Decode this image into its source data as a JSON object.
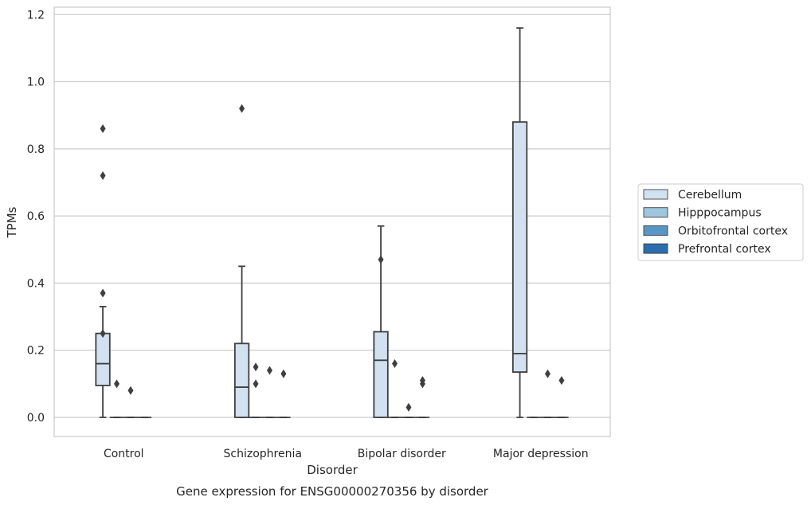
{
  "chart_data": {
    "type": "box",
    "title": "Gene expression for ENSG00000270356 by disorder",
    "xlabel": "Disorder",
    "ylabel": "TPMs",
    "ylim": [
      -0.057,
      1.222
    ],
    "yticks": [
      0.0,
      0.2,
      0.4,
      0.6,
      0.8,
      1.0,
      1.2
    ],
    "ytick_labels": [
      "0.0",
      "0.2",
      "0.4",
      "0.6",
      "0.8",
      "1.0",
      "1.2"
    ],
    "grid": "horizontal",
    "legend_position": "right",
    "categories": [
      "Control",
      "Schizophrenia",
      "Bipolar disorder",
      "Major depression"
    ],
    "series": [
      {
        "name": "Cerebellum",
        "color": "#d1e1f0",
        "boxes": [
          {
            "q1": 0.095,
            "median": 0.16,
            "q3": 0.25,
            "whislo": 0.0,
            "whishi": 0.33,
            "fliers": [
              0.86,
              0.72,
              0.37,
              0.25
            ]
          },
          {
            "q1": 0.0,
            "median": 0.09,
            "q3": 0.22,
            "whislo": 0.0,
            "whishi": 0.45,
            "fliers": [
              0.92
            ]
          },
          {
            "q1": 0.0,
            "median": 0.17,
            "q3": 0.255,
            "whislo": 0.0,
            "whishi": 0.57,
            "fliers": [
              0.47
            ]
          },
          {
            "q1": 0.135,
            "median": 0.19,
            "q3": 0.88,
            "whislo": 0.0,
            "whishi": 1.16,
            "fliers": []
          }
        ]
      },
      {
        "name": "Hipppocampus",
        "color": "#9ec6de",
        "boxes": [
          {
            "q1": 0.0,
            "median": 0.0,
            "q3": 0.0,
            "whislo": 0.0,
            "whishi": 0.0,
            "fliers": [
              0.1
            ]
          },
          {
            "q1": 0.0,
            "median": 0.0,
            "q3": 0.0,
            "whislo": 0.0,
            "whishi": 0.0,
            "fliers": [
              0.15,
              0.1
            ]
          },
          {
            "q1": 0.0,
            "median": 0.0,
            "q3": 0.0,
            "whislo": 0.0,
            "whishi": 0.0,
            "fliers": [
              0.16
            ]
          },
          {
            "q1": 0.0,
            "median": 0.0,
            "q3": 0.0,
            "whislo": 0.0,
            "whishi": 0.0,
            "fliers": []
          }
        ]
      },
      {
        "name": "Orbitofrontal cortex",
        "color": "#5896c5",
        "boxes": [
          {
            "q1": 0.0,
            "median": 0.0,
            "q3": 0.0,
            "whislo": 0.0,
            "whishi": 0.0,
            "fliers": [
              0.08
            ]
          },
          {
            "q1": 0.0,
            "median": 0.0,
            "q3": 0.0,
            "whislo": 0.0,
            "whishi": 0.0,
            "fliers": [
              0.14
            ]
          },
          {
            "q1": 0.0,
            "median": 0.0,
            "q3": 0.0,
            "whislo": 0.0,
            "whishi": 0.0,
            "fliers": [
              0.03
            ]
          },
          {
            "q1": 0.0,
            "median": 0.0,
            "q3": 0.0,
            "whislo": 0.0,
            "whishi": 0.0,
            "fliers": [
              0.13
            ]
          }
        ]
      },
      {
        "name": "Prefrontal cortex",
        "color": "#2a6ead",
        "boxes": [
          {
            "q1": 0.0,
            "median": 0.0,
            "q3": 0.0,
            "whislo": 0.0,
            "whishi": 0.0,
            "fliers": []
          },
          {
            "q1": 0.0,
            "median": 0.0,
            "q3": 0.0,
            "whislo": 0.0,
            "whishi": 0.0,
            "fliers": [
              0.13
            ]
          },
          {
            "q1": 0.0,
            "median": 0.0,
            "q3": 0.0,
            "whislo": 0.0,
            "whishi": 0.0,
            "fliers": [
              0.11,
              0.1
            ]
          },
          {
            "q1": 0.0,
            "median": 0.0,
            "q3": 0.0,
            "whislo": 0.0,
            "whishi": 0.0,
            "fliers": [
              0.11
            ]
          }
        ]
      }
    ]
  }
}
